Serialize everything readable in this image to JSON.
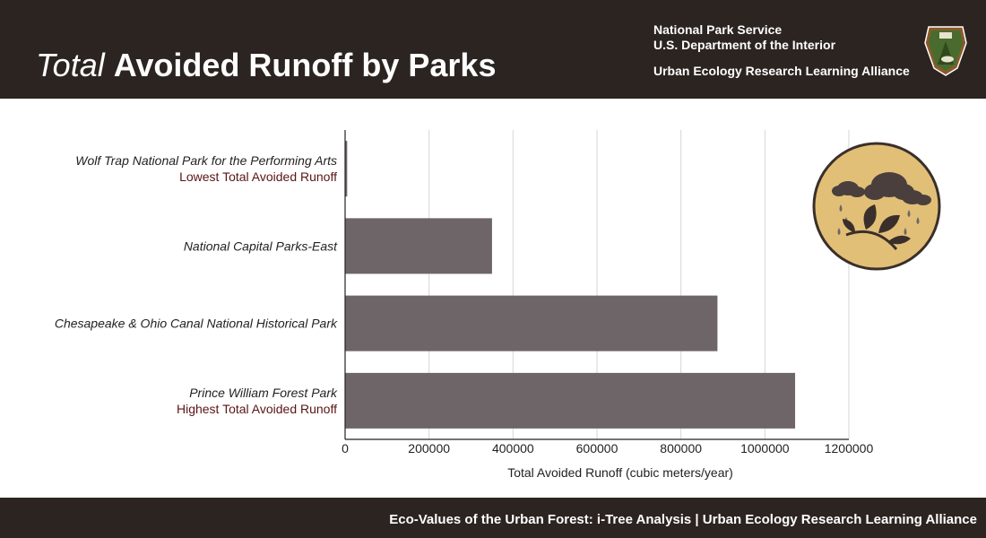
{
  "header": {
    "title_light": "Total",
    "title_bold": "Avoided Runoff by Parks",
    "org_line1": "National Park Service",
    "org_line2": "U.S. Department of the Interior",
    "org_line3": "Urban Ecology Research Learning Alliance",
    "logo_text": "NATIONAL PARK SERVICE",
    "background_color": "#2b2420"
  },
  "footer": {
    "text": "Eco-Values of the Urban Forest: i-Tree Analysis | Urban Ecology Research Learning Alliance"
  },
  "badge_icon": "rain-cloud-leaf-icon",
  "chart_data": {
    "type": "bar",
    "orientation": "horizontal",
    "categories": [
      "Wolf Trap National Park for the Performing Arts",
      "National Capital Parks-East",
      "Chesapeake & Ohio Canal National Historical Park",
      "Prince William Forest Park"
    ],
    "category_notes": [
      "Lowest Total Avoided Runoff",
      "",
      "",
      "Highest Total Avoided Runoff"
    ],
    "values": [
      5000,
      350000,
      887000,
      1072000
    ],
    "xlabel": "Total Avoided Runoff (cubic meters/year)",
    "ylabel": "",
    "xlim": [
      0,
      1200000
    ],
    "xticks": [
      0,
      200000,
      400000,
      600000,
      800000,
      1000000,
      1200000
    ],
    "grid": true,
    "bar_color": "#6e6568",
    "note_color": "#5a1414"
  }
}
